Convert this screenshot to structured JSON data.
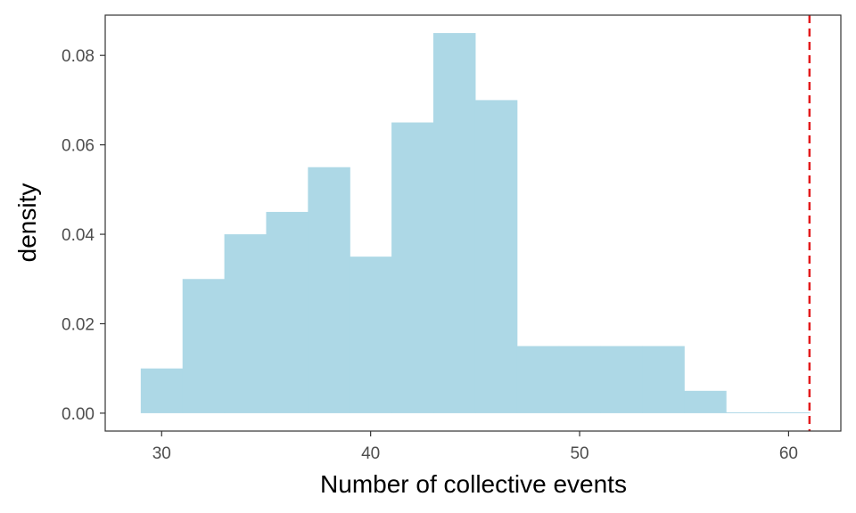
{
  "chart_data": {
    "type": "bar",
    "xlabel": "Number of collective events",
    "ylabel": "density",
    "xlim": [
      27.3,
      62.5
    ],
    "ylim": [
      -0.004,
      0.089
    ],
    "x_ticks": [
      30,
      40,
      50,
      60
    ],
    "y_ticks": [
      0.0,
      0.02,
      0.04,
      0.06,
      0.08
    ],
    "y_tick_labels": [
      "0.00",
      "0.02",
      "0.04",
      "0.06",
      "0.08"
    ],
    "bins": [
      {
        "x0": 29,
        "x1": 31,
        "density": 0.01
      },
      {
        "x0": 31,
        "x1": 33,
        "density": 0.03
      },
      {
        "x0": 33,
        "x1": 35,
        "density": 0.04
      },
      {
        "x0": 35,
        "x1": 37,
        "density": 0.045
      },
      {
        "x0": 37,
        "x1": 39,
        "density": 0.055
      },
      {
        "x0": 39,
        "x1": 41,
        "density": 0.035
      },
      {
        "x0": 41,
        "x1": 43,
        "density": 0.065
      },
      {
        "x0": 43,
        "x1": 45,
        "density": 0.085
      },
      {
        "x0": 45,
        "x1": 47,
        "density": 0.07
      },
      {
        "x0": 47,
        "x1": 49,
        "density": 0.015
      },
      {
        "x0": 49,
        "x1": 51,
        "density": 0.015
      },
      {
        "x0": 51,
        "x1": 53,
        "density": 0.015
      },
      {
        "x0": 53,
        "x1": 55,
        "density": 0.015
      },
      {
        "x0": 55,
        "x1": 57,
        "density": 0.005
      },
      {
        "x0": 57,
        "x1": 59,
        "density": 0.0
      },
      {
        "x0": 59,
        "x1": 61,
        "density": 0.0
      }
    ],
    "reference_line": {
      "x": 61,
      "color": "#e31a1c",
      "style": "dashed"
    },
    "bar_color": "#add8e6",
    "grid": false
  }
}
